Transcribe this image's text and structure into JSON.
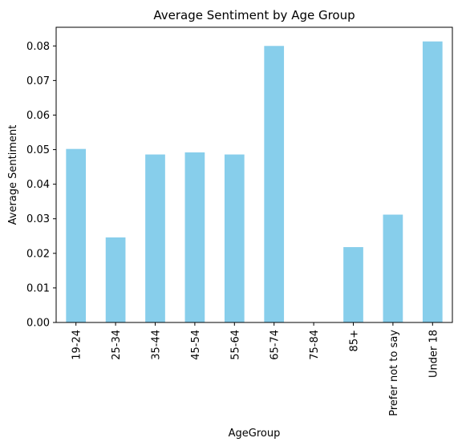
{
  "chart_data": {
    "type": "bar",
    "title": "Average Sentiment by Age Group",
    "xlabel": "AgeGroup",
    "ylabel": "Average Sentiment",
    "categories": [
      "19-24",
      "25-34",
      "35-44",
      "45-54",
      "55-64",
      "65-74",
      "75-84",
      "85+",
      "Prefer not to say",
      "Under 18"
    ],
    "values": [
      0.0502,
      0.0246,
      0.0486,
      0.0492,
      0.0486,
      0.08,
      0.0,
      0.0218,
      0.0312,
      0.0813
    ],
    "ylim": [
      0,
      0.0854
    ],
    "yticks": [
      "0.00",
      "0.01",
      "0.02",
      "0.03",
      "0.04",
      "0.05",
      "0.06",
      "0.07",
      "0.08"
    ],
    "ytick_values": [
      0,
      0.01,
      0.02,
      0.03,
      0.04,
      0.05,
      0.06,
      0.07,
      0.08
    ],
    "bar_color": "#87ceeb",
    "grid": false,
    "legend": "none"
  }
}
